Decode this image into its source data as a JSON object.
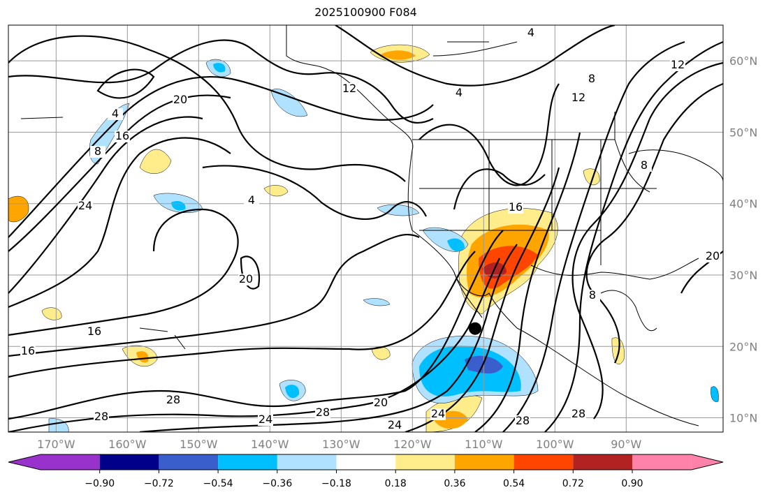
{
  "title": "2025100900 F084",
  "map": {
    "lon_ticks": [
      {
        "lon": -170,
        "label": "170°W"
      },
      {
        "lon": -160,
        "label": "160°W"
      },
      {
        "lon": -150,
        "label": "150°W"
      },
      {
        "lon": -140,
        "label": "140°W"
      },
      {
        "lon": -130,
        "label": "130°W"
      },
      {
        "lon": -120,
        "label": "120°W"
      },
      {
        "lon": -110,
        "label": "110°W"
      },
      {
        "lon": -100,
        "label": "100°W"
      },
      {
        "lon": -90,
        "label": "90°W"
      }
    ],
    "lat_ticks": [
      {
        "lat": 60,
        "label": "60°N"
      },
      {
        "lat": 50,
        "label": "50°N"
      },
      {
        "lat": 40,
        "label": "40°N"
      },
      {
        "lat": 30,
        "label": "30°N"
      },
      {
        "lat": 20,
        "label": "20°N"
      },
      {
        "lat": 10,
        "label": "10°N"
      }
    ],
    "extent": {
      "lon_min": -176.7,
      "lon_max": -76.4,
      "lat_min": 8,
      "lat_max": 65
    },
    "contour_labels": [
      "4",
      "4",
      "4",
      "4",
      "8",
      "8",
      "8",
      "8",
      "12",
      "12",
      "12",
      "16",
      "16",
      "16",
      "16",
      "20",
      "20",
      "20",
      "20",
      "24",
      "24",
      "24",
      "24",
      "28",
      "28",
      "28",
      "28",
      "28"
    ],
    "marker": {
      "lon": -111.2,
      "lat": 22.5
    }
  },
  "colorbar": {
    "colors": [
      "#9932cc",
      "#00008b",
      "#3a5fcd",
      "#00bfff",
      "#b0e2ff",
      "#ffffff",
      "#ffec8b",
      "#ffa500",
      "#ff4500",
      "#b22222",
      "#ff82ab"
    ],
    "ticks": [
      "−0.90",
      "−0.72",
      "−0.54",
      "−0.36",
      "−0.18",
      "0.18",
      "0.36",
      "0.54",
      "0.72",
      "0.90"
    ]
  }
}
